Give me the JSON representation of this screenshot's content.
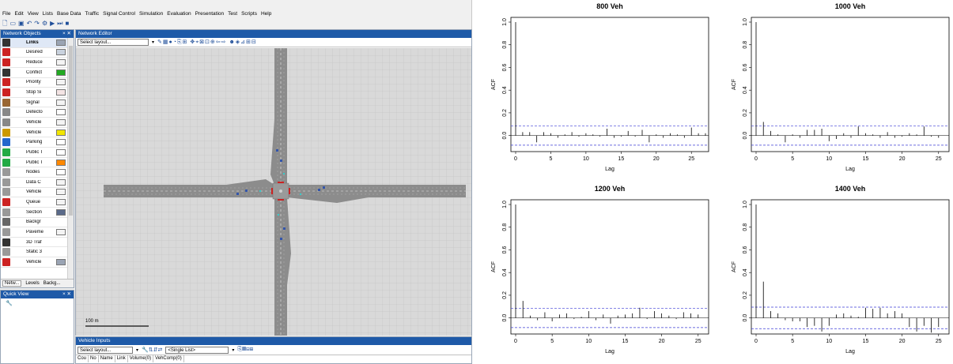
{
  "app": {
    "menu": [
      "File",
      "Edit",
      "View",
      "Lists",
      "Base Data",
      "Traffic",
      "Signal Control",
      "Simulation",
      "Evaluation",
      "Presentation",
      "Test",
      "Scripts",
      "Help"
    ],
    "toolbar_icons": [
      "new-file-icon",
      "open-folder-icon",
      "save-icon",
      "undo-icon",
      "redo-icon",
      "settings-icon",
      "play-icon",
      "step-icon",
      "stop-icon"
    ],
    "network_objects": {
      "title": "Network Objects",
      "items": [
        {
          "label": "Links",
          "icon": "links-icon",
          "color": "#333333",
          "swatch": "#9aa4b4"
        },
        {
          "label": "Desired",
          "icon": "desired-speed-icon",
          "color": "#cc2222",
          "swatch": "#c9d2de"
        },
        {
          "label": "Reduce",
          "icon": "reduced-speed-icon",
          "color": "#cc2222",
          "swatch": "#f4f4f4"
        },
        {
          "label": "Conflict",
          "icon": "conflict-icon",
          "color": "#333333",
          "swatch": "#22aa22"
        },
        {
          "label": "Priority",
          "icon": "priority-icon",
          "color": "#cc2222",
          "swatch": "#f4f4f4"
        },
        {
          "label": "Stop Si",
          "icon": "stop-sign-icon",
          "color": "#cc2222",
          "swatch": "#f4e4e4"
        },
        {
          "label": "Signal",
          "icon": "signal-icon",
          "color": "#996633",
          "swatch": "#f4f4f4"
        },
        {
          "label": "Detecto",
          "icon": "detector-icon",
          "color": "#888888",
          "swatch": "#ffffff"
        },
        {
          "label": "Vehicle",
          "icon": "vehicle-route-icon",
          "color": "#888888",
          "swatch": "#f4f4f4"
        },
        {
          "label": "Vehicle",
          "icon": "vehicle-input-icon",
          "color": "#cc9900",
          "swatch": "#f2e600"
        },
        {
          "label": "Parking",
          "icon": "parking-icon",
          "color": "#2266cc",
          "swatch": "#ffffff"
        },
        {
          "label": "Public T",
          "icon": "public-transport-stop-icon",
          "color": "#22aa44",
          "swatch": "#ffffff"
        },
        {
          "label": "Public T",
          "icon": "public-transport-line-icon",
          "color": "#22aa44",
          "swatch": "#ff8800"
        },
        {
          "label": "Nodes",
          "icon": "nodes-icon",
          "color": "#999999",
          "swatch": "#ffffff"
        },
        {
          "label": "Data C",
          "icon": "data-collection-icon",
          "color": "#999999",
          "swatch": "#f4f4f4"
        },
        {
          "label": "Vehicle",
          "icon": "vehicle-travel-time-icon",
          "color": "#999999",
          "swatch": "#f4f4f4"
        },
        {
          "label": "Queue",
          "icon": "queue-counter-icon",
          "color": "#cc2222",
          "swatch": "#f4f4f4"
        },
        {
          "label": "Section",
          "icon": "section-icon",
          "color": "#999999",
          "swatch": "#5a6a8a"
        },
        {
          "label": "Backgr",
          "icon": "background-image-icon",
          "color": "#666666",
          "swatch": ""
        },
        {
          "label": "Paveme",
          "icon": "pavement-marking-icon",
          "color": "#999999",
          "swatch": "#f4f4f4"
        },
        {
          "label": "3D Traf",
          "icon": "3d-traffic-signal-icon",
          "color": "#333333",
          "swatch": ""
        },
        {
          "label": "Static 3",
          "icon": "static-3d-model-icon",
          "color": "#999999",
          "swatch": ""
        },
        {
          "label": "Vehicle",
          "icon": "vehicle-icon",
          "color": "#cc2222",
          "swatch": "#9aa4b4"
        }
      ],
      "tabs": [
        "Netw...",
        "Levels",
        "Backg..."
      ]
    },
    "quick_view": {
      "title": "Quick View"
    },
    "network_editor": {
      "title": "Network Editor",
      "layout_select": "Select layout...",
      "scale_label": "100 m"
    },
    "vehicle_inputs": {
      "title": "Vehicle Inputs",
      "layout_select": "Select layout...",
      "list_select": "<Single List>",
      "columns": [
        "Cou",
        "No",
        "Name",
        "Link",
        "Volume(0)",
        "VehComp(0)"
      ]
    },
    "colors": {
      "accent": "#1e5aa8",
      "road": "#8c8c8c",
      "grid": "#bdbdbd"
    }
  },
  "chart_data": [
    {
      "type": "bar",
      "title": "800 Veh",
      "xlabel": "Lag",
      "ylabel": "ACF",
      "xlim": [
        0,
        27
      ],
      "ylim": [
        -0.1,
        1.0
      ],
      "xticks": [
        "0",
        "5",
        "10",
        "15",
        "20",
        "25"
      ],
      "yticks": [
        "0.0",
        "0.2",
        "0.4",
        "0.6",
        "0.8",
        "1.0"
      ],
      "confidence_band": [
        -0.085,
        0.085
      ],
      "values": [
        1.0,
        0.03,
        0.03,
        -0.06,
        0.03,
        0.02,
        -0.02,
        0.01,
        0.03,
        -0.01,
        0.02,
        0.01,
        -0.01,
        0.06,
        -0.02,
        -0.01,
        0.04,
        -0.01,
        0.05,
        -0.06,
        0.01,
        -0.02,
        0.02,
        0.01,
        -0.02,
        0.07,
        0.02,
        0.02
      ]
    },
    {
      "type": "bar",
      "title": "1000 Veh",
      "xlabel": "Lag",
      "ylabel": "ACF",
      "xlim": [
        0,
        26
      ],
      "ylim": [
        -0.1,
        1.0
      ],
      "xticks": [
        "0",
        "5",
        "10",
        "15",
        "20",
        "25"
      ],
      "yticks": [
        "0.0",
        "0.2",
        "0.4",
        "0.6",
        "0.8",
        "1.0"
      ],
      "confidence_band": [
        -0.085,
        0.085
      ],
      "values": [
        1.0,
        0.12,
        0.04,
        0.01,
        -0.06,
        0.01,
        -0.02,
        0.05,
        0.05,
        0.06,
        -0.05,
        -0.03,
        0.02,
        -0.02,
        0.08,
        0.02,
        0.01,
        -0.02,
        0.03,
        -0.02,
        -0.01,
        0.02,
        0.01,
        0.08,
        -0.01,
        -0.02
      ]
    },
    {
      "type": "bar",
      "title": "1200 Veh",
      "xlabel": "Lag",
      "ylabel": "ACF",
      "xlim": [
        0,
        26
      ],
      "ylim": [
        -0.1,
        1.0
      ],
      "xticks": [
        "0",
        "5",
        "10",
        "15",
        "20",
        "25"
      ],
      "yticks": [
        "0.0",
        "0.2",
        "0.4",
        "0.6",
        "0.8",
        "1.0"
      ],
      "confidence_band": [
        -0.085,
        0.085
      ],
      "values": [
        1.0,
        0.15,
        0.02,
        -0.02,
        0.05,
        -0.03,
        0.03,
        0.04,
        -0.01,
        0.01,
        0.06,
        -0.02,
        0.03,
        -0.05,
        0.02,
        0.03,
        0.04,
        0.09,
        -0.01,
        0.06,
        0.04,
        0.02,
        -0.01,
        0.05,
        0.04,
        0.03
      ]
    },
    {
      "type": "bar",
      "title": "1400 Veh",
      "xlabel": "Lag",
      "ylabel": "ACF",
      "xlim": [
        0,
        26
      ],
      "ylim": [
        -0.1,
        1.0
      ],
      "xticks": [
        "0",
        "5",
        "10",
        "15",
        "20",
        "25"
      ],
      "yticks": [
        "0.0",
        "0.2",
        "0.4",
        "0.6",
        "0.8",
        "1.0"
      ],
      "confidence_band": [
        -0.095,
        0.095
      ],
      "values": [
        1.0,
        0.32,
        0.06,
        0.04,
        -0.02,
        -0.03,
        -0.03,
        -0.08,
        -0.07,
        -0.12,
        -0.07,
        0.03,
        0.04,
        0.02,
        0.01,
        0.09,
        0.08,
        0.09,
        0.04,
        0.06,
        0.04,
        -0.08,
        -0.12,
        -0.07,
        -0.13,
        -0.08
      ]
    }
  ]
}
